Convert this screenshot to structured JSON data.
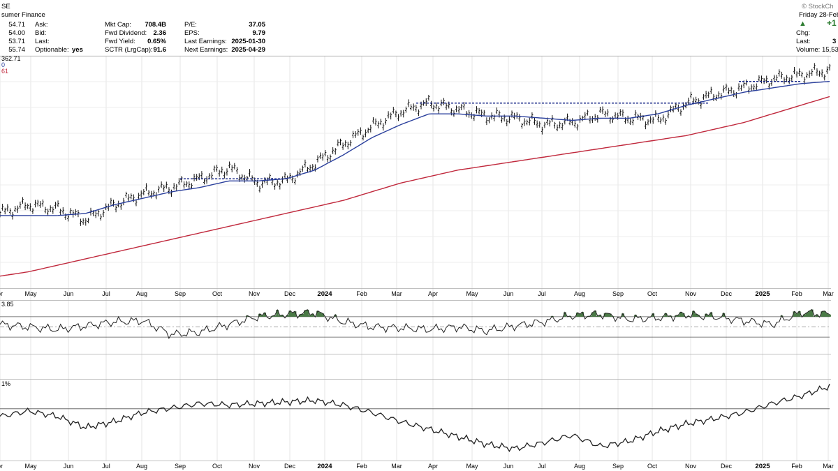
{
  "header": {
    "ticker": "SE",
    "company": "sumer Finance",
    "watermark": "© StockCh",
    "price_col": [
      "54.71",
      "54.00",
      "53.71",
      "55.74"
    ],
    "ask_label": "Ask:",
    "bid_label": "Bid:",
    "last_label": "Last:",
    "optionable_label": "Optionable:",
    "optionable_value": "yes",
    "mktcap_label": "Mkt Cap:",
    "mktcap_value": "708.4B",
    "fwd_div_label": "Fwd Dividend:",
    "fwd_div_value": "2.36",
    "fwd_yield_label": "Fwd Yield:",
    "fwd_yield_value": "0.65%",
    "sctr_label": "SCTR (LrgCap):",
    "sctr_value": "91.6",
    "pe_label": "P/E:",
    "pe_value": "37.05",
    "eps_label": "EPS:",
    "eps_value": "9.79",
    "last_earn_label": "Last Earnings:",
    "last_earn_value": "2025-01-30",
    "next_earn_label": "Next Earnings:",
    "next_earn_value": "2025-04-29",
    "date_text": "Friday  28-Feb",
    "change_value": "+1",
    "chg_label": "Chg:",
    "right_last_label": "Last:",
    "right_last_value": "3",
    "volume_label": "Volume: 15,53"
  },
  "legend": {
    "price_line": "362.71",
    "ma_fast": "0",
    "ma_slow": "61",
    "rsi_value": "3.85",
    "rel_value": "1%"
  },
  "colors": {
    "ma_fast": "#2a3f9c",
    "ma_slow": "#c0283c",
    "resistance": "#1c2b8a",
    "rsi_fill": "#4a7a46",
    "up_arrow": "#2e7d32"
  },
  "x_axis": [
    "or",
    "May",
    "Jun",
    "Jul",
    "Aug",
    "Sep",
    "Oct",
    "Nov",
    "Dec",
    "2024",
    "Feb",
    "Mar",
    "Apr",
    "May",
    "Jun",
    "Jul",
    "Aug",
    "Sep",
    "Oct",
    "Nov",
    "Dec",
    "2025",
    "Feb",
    "Mar"
  ],
  "chart_data": {
    "type": "line",
    "title": "",
    "x_labels": [
      "or",
      "May",
      "Jun",
      "Jul",
      "Aug",
      "Sep",
      "Oct",
      "Nov",
      "Dec",
      "2024",
      "Feb",
      "Mar",
      "Apr",
      "May",
      "Jun",
      "Jul",
      "Aug",
      "Sep",
      "Oct",
      "Nov",
      "Dec",
      "2025",
      "Feb",
      "Mar"
    ],
    "series": [
      {
        "values": [
          0.32,
          0.36,
          0.34,
          0.29,
          0.36,
          0.41,
          0.44,
          0.48,
          0.53,
          0.46,
          0.47,
          0.55,
          0.64,
          0.72,
          0.79,
          0.83,
          0.8,
          0.77,
          0.76,
          0.73,
          0.74,
          0.78,
          0.76,
          0.75,
          0.83,
          0.87,
          0.9,
          0.94,
          0.96,
          0.98
        ]
      },
      {
        "values": [
          0.31,
          0.31,
          0.31,
          0.32,
          0.36,
          0.39,
          0.42,
          0.44,
          0.47,
          0.47,
          0.48,
          0.52,
          0.59,
          0.67,
          0.73,
          0.78,
          0.78,
          0.77,
          0.77,
          0.76,
          0.75,
          0.76,
          0.76,
          0.78,
          0.82,
          0.85,
          0.88,
          0.9,
          0.92,
          0.93
        ]
      },
      {
        "values": [
          0.03,
          0.05,
          0.08,
          0.11,
          0.14,
          0.17,
          0.2,
          0.23,
          0.26,
          0.29,
          0.32,
          0.35,
          0.38,
          0.42,
          0.46,
          0.49,
          0.52,
          0.54,
          0.56,
          0.58,
          0.6,
          0.62,
          0.64,
          0.66,
          0.68,
          0.71,
          0.74,
          0.78,
          0.82,
          0.86
        ]
      }
    ],
    "resistance_levels": [
      0.48,
      0.83,
      0.93
    ],
    "rsi": [
      0.55,
      0.5,
      0.45,
      0.52,
      0.6,
      0.62,
      0.35,
      0.4,
      0.55,
      0.7,
      0.75,
      0.78,
      0.6,
      0.5,
      0.48,
      0.45,
      0.5,
      0.42,
      0.52,
      0.6,
      0.72,
      0.75,
      0.65,
      0.68,
      0.74,
      0.7,
      0.62,
      0.55,
      0.78,
      0.75
    ],
    "relative": [
      0.55,
      0.62,
      0.55,
      0.4,
      0.48,
      0.6,
      0.66,
      0.72,
      0.7,
      0.72,
      0.74,
      0.76,
      0.7,
      0.6,
      0.48,
      0.38,
      0.28,
      0.18,
      0.12,
      0.2,
      0.3,
      0.15,
      0.22,
      0.35,
      0.45,
      0.52,
      0.6,
      0.72,
      0.82,
      0.95
    ]
  }
}
